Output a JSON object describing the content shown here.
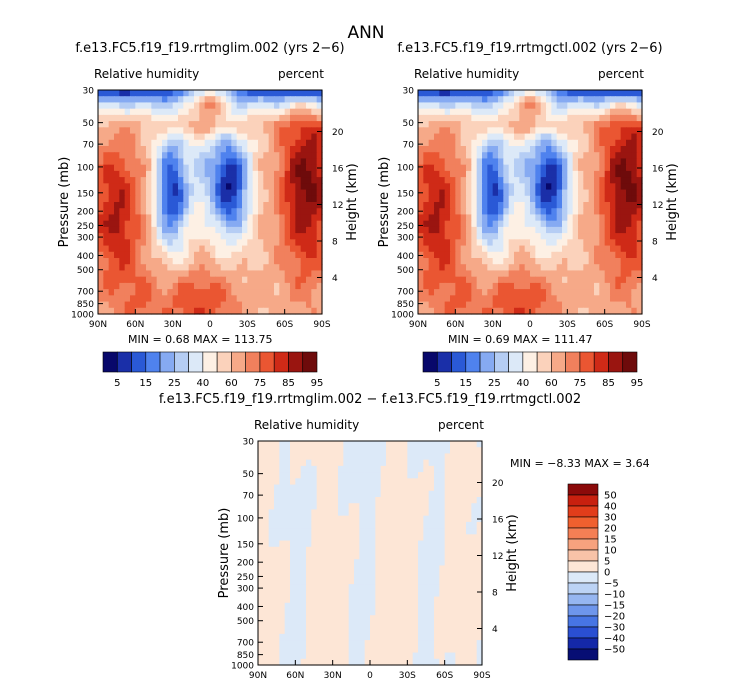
{
  "figure": {
    "title": "ANN"
  },
  "chart_data": [
    {
      "type": "heatmap",
      "title": "f.e13.FC5.f19_f19.rrtmglim.002 (yrs 2−6)",
      "left_label": "Relative humidity",
      "right_label": "percent",
      "ylabel": "Pressure (mb)",
      "y2label": "Height (km)",
      "x_ticks": [
        "90N",
        "60N",
        "30N",
        "0",
        "30S",
        "60S",
        "90S"
      ],
      "y_ticks": [
        "30",
        "50",
        "70",
        "100",
        "150",
        "200",
        "250",
        "300",
        "400",
        "500",
        "700",
        "850",
        "1000"
      ],
      "y2_ticks": [
        "20",
        "16",
        "12",
        "8",
        "4"
      ],
      "min_label": "MIN =",
      "min_value": "0.68",
      "max_label": "MAX =",
      "max_value": "113.75",
      "colorbar_labels": [
        "5",
        "15",
        "25",
        "40",
        "60",
        "75",
        "85",
        "95"
      ],
      "colors": [
        "#08086b",
        "#1a2fa8",
        "#2a59d6",
        "#4f82ee",
        "#86aaf2",
        "#b5cdf4",
        "#dce9f8",
        "#fdf0e4",
        "#fbd2bb",
        "#f6a988",
        "#f1805d",
        "#ea5632",
        "#cf2a17",
        "#9a1510",
        "#6e0b0b"
      ],
      "field": "control"
    },
    {
      "type": "heatmap",
      "title": "f.e13.FC5.f19_f19.rrtmgctl.002 (yrs 2−6)",
      "left_label": "Relative humidity",
      "right_label": "percent",
      "ylabel": "Pressure (mb)",
      "y2label": "Height (km)",
      "x_ticks": [
        "90N",
        "60N",
        "30N",
        "0",
        "30S",
        "60S",
        "90S"
      ],
      "y_ticks": [
        "30",
        "50",
        "70",
        "100",
        "150",
        "200",
        "250",
        "300",
        "400",
        "500",
        "700",
        "850",
        "1000"
      ],
      "y2_ticks": [
        "20",
        "16",
        "12",
        "8",
        "4"
      ],
      "min_label": "MIN =",
      "min_value": "0.69",
      "max_label": "MAX =",
      "max_value": "111.47",
      "colorbar_labels": [
        "5",
        "15",
        "25",
        "40",
        "60",
        "75",
        "85",
        "95"
      ],
      "colors": [
        "#08086b",
        "#1a2fa8",
        "#2a59d6",
        "#4f82ee",
        "#86aaf2",
        "#b5cdf4",
        "#dce9f8",
        "#fdf0e4",
        "#fbd2bb",
        "#f6a988",
        "#f1805d",
        "#ea5632",
        "#cf2a17",
        "#9a1510",
        "#6e0b0b"
      ],
      "field": "control"
    },
    {
      "type": "heatmap",
      "title": "f.e13.FC5.f19_f19.rrtmglim.002 − f.e13.FC5.f19_f19.rrtmgctl.002",
      "left_label": "Relative humidity",
      "right_label": "percent",
      "ylabel": "Pressure (mb)",
      "y2label": "Height (km)",
      "x_ticks": [
        "90N",
        "60N",
        "30N",
        "0",
        "30S",
        "60S",
        "90S"
      ],
      "y_ticks": [
        "30",
        "50",
        "70",
        "100",
        "150",
        "200",
        "250",
        "300",
        "400",
        "500",
        "700",
        "850",
        "1000"
      ],
      "y2_ticks": [
        "20",
        "16",
        "12",
        "8",
        "4"
      ],
      "min_label": "MIN =",
      "min_value": "−8.33",
      "max_label": "MAX =",
      "max_value": "3.64",
      "colorbar_labels": [
        "50",
        "40",
        "30",
        "20",
        "15",
        "10",
        "5",
        "0",
        "−5",
        "−10",
        "−15",
        "−20",
        "−30",
        "−40",
        "−50"
      ],
      "colors": [
        "#8b0a0a",
        "#c8200f",
        "#e23d1b",
        "#f0602f",
        "#f47f55",
        "#f6a27e",
        "#f8c3a8",
        "#fde6d6",
        "#dce9f8",
        "#bcd3f5",
        "#96b6f1",
        "#6e96ec",
        "#4775e4",
        "#2a4fd2",
        "#1428a8",
        "#070e74"
      ],
      "field": "difference"
    }
  ]
}
